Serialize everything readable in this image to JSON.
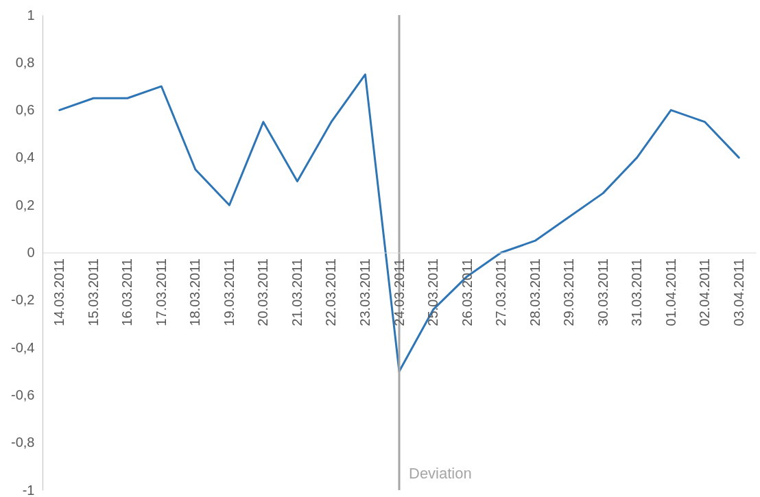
{
  "chart_data": {
    "type": "line",
    "categories": [
      "14.03.2011",
      "15.03.2011",
      "16.03.2011",
      "17.03.2011",
      "18.03.2011",
      "19.03.2011",
      "20.03.2011",
      "21.03.2011",
      "22.03.2011",
      "23.03.2011",
      "24.03.2011",
      "25.03.2011",
      "26.03.2011",
      "27.03.2011",
      "28.03.2011",
      "29.03.2011",
      "30.03.2011",
      "31.03.2011",
      "01.04.2011",
      "02.04.2011",
      "03.04.2011"
    ],
    "series": [
      {
        "color": "#2e75b6",
        "values": [
          0.6,
          0.65,
          0.65,
          0.7,
          0.35,
          0.2,
          0.55,
          0.3,
          0.55,
          0.75,
          -0.5,
          -0.24,
          -0.1,
          0,
          0.05,
          0.15,
          0.25,
          0.4,
          0.6,
          0.55,
          0.4
        ]
      }
    ],
    "ylim": [
      -1,
      1
    ],
    "yticks": [
      {
        "value": -1,
        "label": "-1"
      },
      {
        "value": -0.8,
        "label": "-0,8"
      },
      {
        "value": -0.6,
        "label": "-0,6"
      },
      {
        "value": -0.4,
        "label": "-0,4"
      },
      {
        "value": -0.2,
        "label": "-0,2"
      },
      {
        "value": 0,
        "label": "0"
      },
      {
        "value": 0.2,
        "label": "0,2"
      },
      {
        "value": 0.4,
        "label": "0,4"
      },
      {
        "value": 0.6,
        "label": "0,6"
      },
      {
        "value": 0.8,
        "label": "0,8"
      },
      {
        "value": 1,
        "label": "1"
      }
    ],
    "ref_lines": [
      {
        "axis": "x",
        "value": "24.03.2011",
        "label": "Deviation",
        "color": "#a6a6a6"
      }
    ],
    "grid": false,
    "marker": "none",
    "line_style": "solid"
  }
}
